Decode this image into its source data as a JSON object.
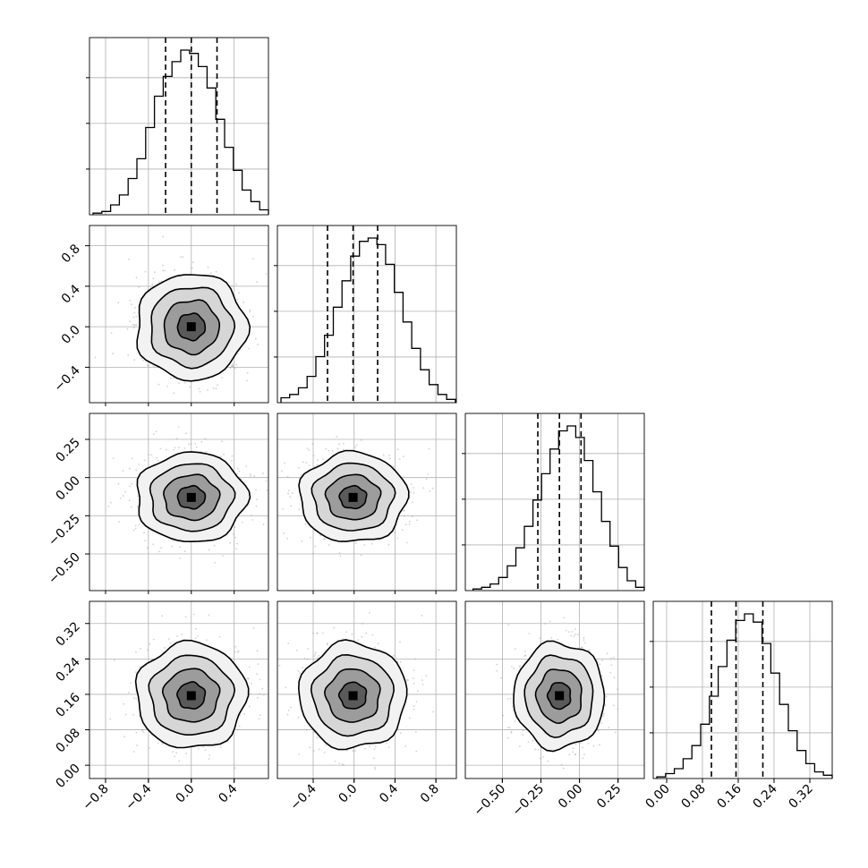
{
  "colors": {
    "frame": "#000000",
    "grid": "#b0b0b0",
    "points": "#9a9a9a",
    "background": "#ffffff"
  },
  "chart_data": {
    "type": "corner",
    "grid": true,
    "n_params": 4,
    "params": [
      {
        "range": [
          -0.95,
          0.72
        ],
        "ticks": [
          -0.8,
          -0.4,
          0.0,
          0.4
        ],
        "tick_labels": [
          "−0.8",
          "−0.4",
          "0.0",
          "0.4"
        ],
        "quantiles": [
          -0.24,
          0.0,
          0.24
        ],
        "mean": 0.0,
        "std": 0.245
      },
      {
        "range": [
          -0.75,
          1.0
        ],
        "ticks": [
          -0.4,
          0.0,
          0.4,
          0.8
        ],
        "tick_labels": [
          "−0.4",
          "0.0",
          "0.4",
          "0.8"
        ],
        "quantiles": [
          -0.26,
          -0.01,
          0.23
        ],
        "mean": -0.01,
        "std": 0.25
      },
      {
        "range": [
          -0.74,
          0.42
        ],
        "ticks": [
          -0.5,
          -0.25,
          0.0,
          0.25
        ],
        "tick_labels": [
          "−0.50",
          "−0.25",
          "0.00",
          "0.25"
        ],
        "quantiles": [
          -0.27,
          -0.13,
          0.01
        ],
        "mean": -0.13,
        "std": 0.14
      },
      {
        "range": [
          -0.03,
          0.37
        ],
        "ticks": [
          0.0,
          0.08,
          0.16,
          0.24,
          0.32
        ],
        "tick_labels": [
          "0.00",
          "0.08",
          "0.16",
          "0.24",
          "0.32"
        ],
        "quantiles": [
          0.1,
          0.155,
          0.215
        ],
        "mean": 0.157,
        "std": 0.057
      }
    ],
    "histograms": [
      {
        "param": 0,
        "bins": 20,
        "counts": [
          0.01,
          0.02,
          0.06,
          0.12,
          0.22,
          0.34,
          0.53,
          0.72,
          0.84,
          0.93,
          1.0,
          0.98,
          0.9,
          0.77,
          0.58,
          0.41,
          0.27,
          0.15,
          0.08,
          0.03
        ]
      },
      {
        "param": 1,
        "bins": 20,
        "counts": [
          0.03,
          0.05,
          0.09,
          0.16,
          0.28,
          0.41,
          0.58,
          0.74,
          0.89,
          0.98,
          1.0,
          0.96,
          0.84,
          0.67,
          0.49,
          0.33,
          0.2,
          0.11,
          0.05,
          0.02
        ]
      },
      {
        "param": 2,
        "bins": 20,
        "counts": [
          0.01,
          0.02,
          0.04,
          0.08,
          0.15,
          0.26,
          0.39,
          0.55,
          0.71,
          0.86,
          0.97,
          1.0,
          0.93,
          0.79,
          0.6,
          0.42,
          0.27,
          0.14,
          0.06,
          0.02
        ]
      },
      {
        "param": 3,
        "bins": 20,
        "counts": [
          0.01,
          0.03,
          0.06,
          0.12,
          0.2,
          0.33,
          0.5,
          0.68,
          0.84,
          0.96,
          1.0,
          0.95,
          0.82,
          0.64,
          0.45,
          0.29,
          0.17,
          0.09,
          0.04,
          0.02
        ]
      }
    ],
    "scatter_panels": [
      {
        "x_param": 0,
        "y_param": 1,
        "x_center": 0.0,
        "y_center": 0.0
      },
      {
        "x_param": 0,
        "y_param": 2,
        "x_center": 0.0,
        "y_center": -0.13
      },
      {
        "x_param": 1,
        "y_param": 2,
        "x_center": -0.01,
        "y_center": -0.13
      },
      {
        "x_param": 0,
        "y_param": 3,
        "x_center": 0.0,
        "y_center": 0.157
      },
      {
        "x_param": 1,
        "y_param": 3,
        "x_center": -0.01,
        "y_center": 0.157
      },
      {
        "x_param": 2,
        "y_param": 3,
        "x_center": -0.13,
        "y_center": 0.157
      }
    ],
    "contour_levels_sigma": [
      0.5,
      1.0,
      1.5,
      2.0
    ]
  }
}
